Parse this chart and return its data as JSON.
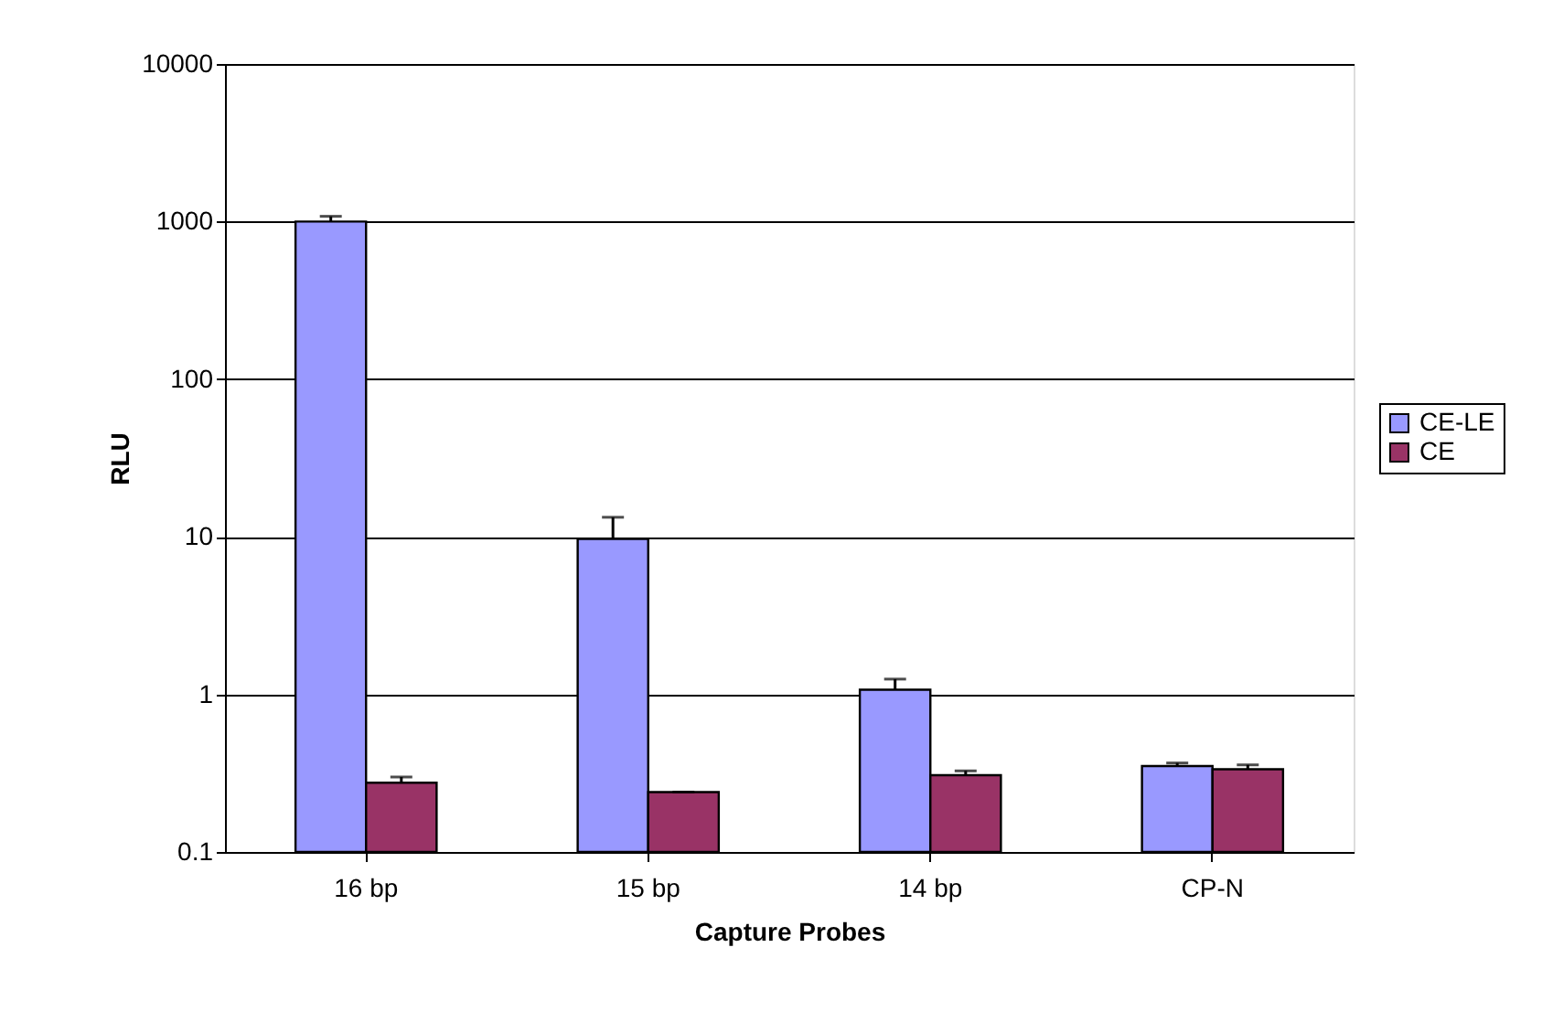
{
  "chart_data": {
    "type": "bar",
    "xlabel": "Capture Probes",
    "ylabel": "RLU",
    "categories": [
      "16 bp",
      "15 bp",
      "14 bp",
      "CP-N"
    ],
    "series": [
      {
        "name": "CE-LE",
        "color": "#9999ff",
        "values": [
          1000,
          9.7,
          1.07,
          0.351
        ],
        "errors": [
          80,
          3.6,
          0.18,
          0.016
        ]
      },
      {
        "name": "CE",
        "color": "#993366",
        "values": [
          0.275,
          0.24,
          0.307,
          0.335
        ],
        "errors": [
          0.024,
          0,
          0.02,
          0.022
        ]
      }
    ],
    "log": true,
    "ylim": [
      0.1,
      10000
    ],
    "yticks": [
      0.1,
      1,
      10,
      100,
      1000,
      10000
    ],
    "grid": "y",
    "legend": "right"
  }
}
